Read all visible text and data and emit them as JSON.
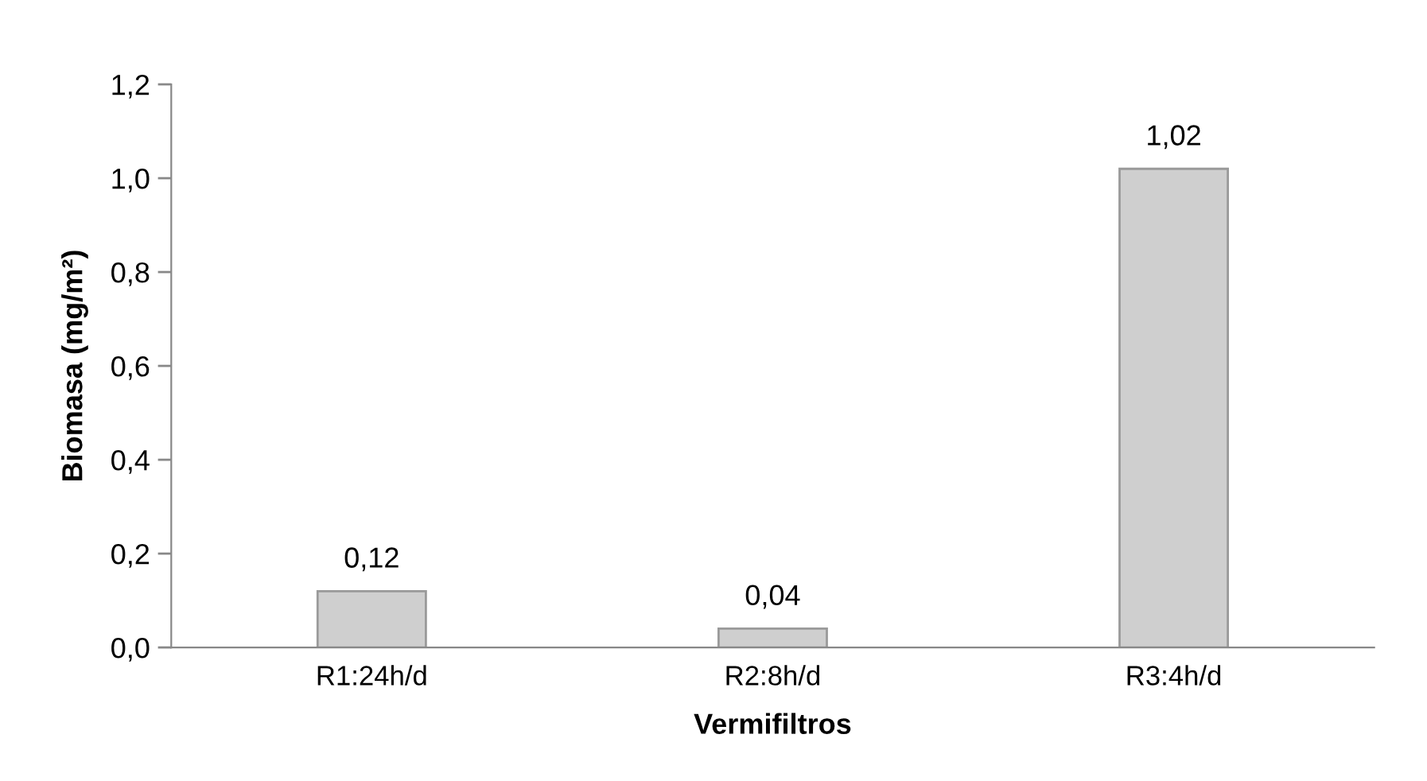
{
  "chart_data": {
    "type": "bar",
    "xlabel": "Vermifiltros",
    "ylabel": "Biomasa (mg/m²)",
    "categories": [
      "R1:24h/d",
      "R2:8h/d",
      "R3:4h/d"
    ],
    "values": [
      0.12,
      0.04,
      1.02
    ],
    "value_labels": [
      "0,12",
      "0,04",
      "1,02"
    ],
    "color": "#cfcfcf",
    "ylim": [
      0,
      1.2
    ],
    "yticks": [
      {
        "value": 0,
        "label": "0,0"
      },
      {
        "value": 0.2,
        "label": "0,2"
      },
      {
        "value": 0.4,
        "label": "0,4"
      },
      {
        "value": 0.6,
        "label": "0,6"
      },
      {
        "value": 0.8,
        "label": "0,8"
      },
      {
        "value": 1.0,
        "label": "1,0"
      },
      {
        "value": 1.2,
        "label": "1,2"
      }
    ],
    "grid": false,
    "legend": false
  }
}
